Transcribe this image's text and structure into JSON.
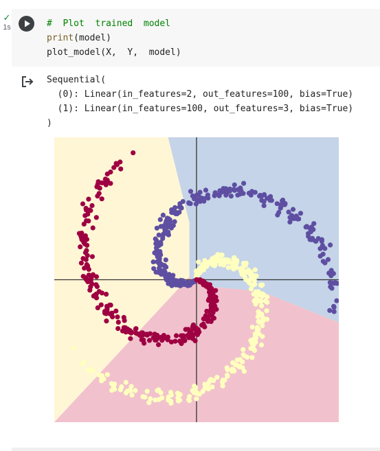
{
  "cell": {
    "status_check": "✓",
    "status_time": "1s",
    "code_lines": [
      {
        "kind": "comment",
        "text": "#  Plot  trained  model"
      },
      {
        "kind": "print",
        "fn": "print",
        "rest": "(model)"
      },
      {
        "kind": "plain",
        "text": "plot_model(X,  Y,  model)"
      }
    ]
  },
  "output": {
    "lines": [
      "Sequential(",
      "  (0): Linear(in_features=2, out_features=100, bias=True)",
      "  (1): Linear(in_features=100, out_features=3, bias=True)",
      ")"
    ]
  },
  "chart_data": {
    "type": "scatter",
    "xlim": [
      -1.0,
      1.0
    ],
    "ylim": [
      -1.0,
      1.0
    ],
    "grid": false,
    "axes_through_origin": true,
    "decision_regions": [
      {
        "class": 0,
        "color": "#fff6d6"
      },
      {
        "class": 1,
        "color": "#c5d4e8"
      },
      {
        "class": 2,
        "color": "#f1c2cd"
      }
    ],
    "series": [
      {
        "class": 0,
        "color": "#ffffbf",
        "points_per_arm": 1000,
        "approx_points": 1000
      },
      {
        "class": 1,
        "color": "#5e4fa2",
        "points_per_arm": 1000,
        "approx_points": 1000
      },
      {
        "class": 2,
        "color": "#9e0142",
        "points_per_arm": 1000,
        "approx_points": 1000
      }
    ]
  },
  "colors": {
    "cell_bg": "#f7f7f7",
    "run_button": "#3c4043",
    "success_green": "#188038",
    "comment_green": "#008000",
    "builtin_brown": "#795e26"
  }
}
